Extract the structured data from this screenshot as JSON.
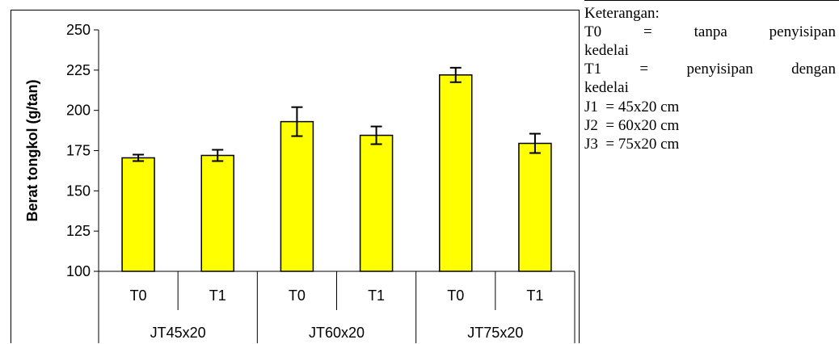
{
  "chart_data": {
    "type": "bar",
    "title": "",
    "ylabel": "Berat tongkol (g/tan)",
    "xlabel": "",
    "ylim": [
      100,
      250
    ],
    "yticks": [
      100,
      125,
      150,
      175,
      200,
      225,
      250
    ],
    "groups": [
      "JT45x20",
      "JT60x20",
      "JT75x20"
    ],
    "categories": [
      "T0",
      "T1",
      "T0",
      "T1",
      "T0",
      "T1"
    ],
    "values": [
      170.5,
      172,
      193,
      184.5,
      222,
      179.5
    ],
    "error": [
      2,
      3.5,
      9,
      5.5,
      4.5,
      6
    ],
    "bar_color": "#ffff00",
    "grid": false
  },
  "notes": {
    "heading": "Keterangan:",
    "t0_label": "T0",
    "t0_eq": "=",
    "t0_desc": "tanpa penyisipan",
    "t0_cont": "kedelai",
    "t1_label": "T1",
    "t1_eq": "=",
    "t1_desc": "penyisipan dengan",
    "t1_cont": "kedelai",
    "j1": "J1  = 45x20 cm",
    "j2": "J2  = 60x20 cm",
    "j3": "J3  = 75x20 cm"
  }
}
